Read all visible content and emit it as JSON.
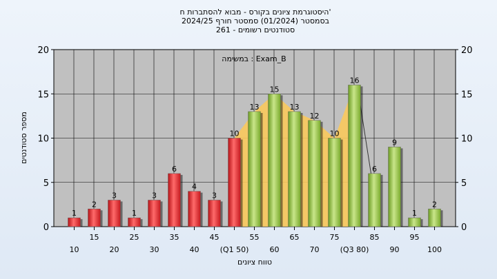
{
  "chart_data": {
    "type": "bar",
    "title_lines": [
      "היסטוגרמת ציונים בקורס - מבוא להסתברות ח'",
      "בסמסטר  (01/2024)  סמסטר חורף 2024/25",
      "סטודנטים רשומים - 261"
    ],
    "legend_text": "במשימה : Exam_B",
    "ylabel": "מספר סטודנטים",
    "xlabel": "טווח ציונים",
    "ylim": [
      0,
      20
    ],
    "y_ticks": [
      "0",
      "5",
      "10",
      "15",
      "20"
    ],
    "categories": [
      10,
      15,
      20,
      25,
      30,
      35,
      40,
      45,
      50,
      55,
      60,
      65,
      70,
      75,
      80,
      85,
      90,
      95,
      100
    ],
    "category_labels": [
      "10",
      "15",
      "20",
      "25",
      "30",
      "35",
      "40",
      "45",
      "(Q1 50)",
      "55",
      "60",
      "65",
      "70",
      "75",
      "(Q3 80)",
      "85",
      "90",
      "95",
      "100"
    ],
    "values": [
      1,
      2,
      3,
      1,
      3,
      6,
      4,
      3,
      10,
      13,
      15,
      13,
      12,
      10,
      16,
      6,
      9,
      1,
      2
    ],
    "value_labels": [
      "1",
      "2",
      "3",
      "1",
      "3",
      "6",
      "4",
      "3",
      "10",
      "13",
      "15",
      "13",
      "12",
      "10",
      "16",
      "6",
      "9",
      "1",
      "2"
    ],
    "failing_color": "#e0282e",
    "passing_color": "#8cbd3a",
    "iqr_fill_color": "#f9c95c",
    "plot_background": "#c0c0c0",
    "grid": true
  }
}
